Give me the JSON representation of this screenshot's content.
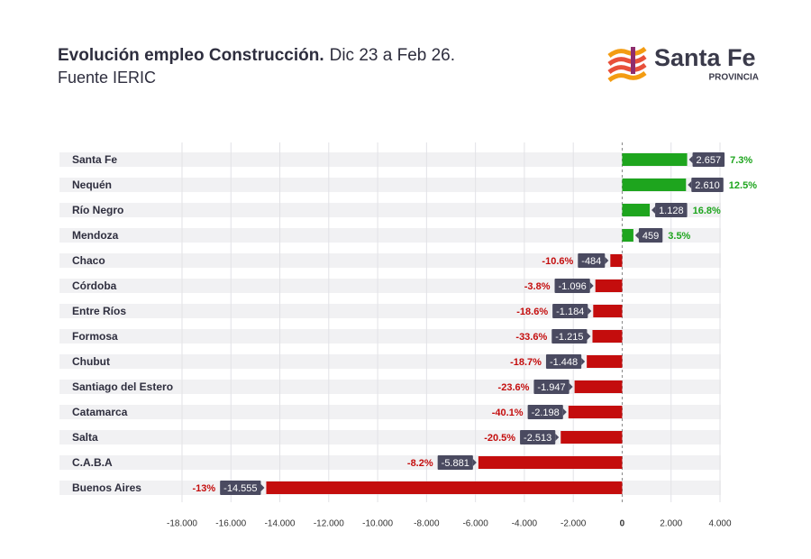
{
  "chart_data": {
    "type": "barh",
    "title": "Evolución empleo Construcción.",
    "subtitle": "Dic 23 a Feb 26.",
    "source": "Fuente IERIC",
    "categories": [
      "Santa Fe",
      "Nequén",
      "Río Negro",
      "Mendoza",
      "Chaco",
      "Córdoba",
      "Entre Ríos",
      "Formosa",
      "Chubut",
      "Santiago del Estero",
      "Catamarca",
      "Salta",
      "C.A.B.A",
      "Buenos Aires"
    ],
    "values": [
      2657,
      2610,
      1128,
      459,
      -484,
      -1096,
      -1184,
      -1215,
      -1448,
      -1947,
      -2198,
      -2513,
      -5881,
      -14555
    ],
    "value_labels": [
      "2.657",
      "2.610",
      "1.128",
      "459",
      "-484",
      "-1.096",
      "-1.184",
      "-1.215",
      "-1.448",
      "-1.947",
      "-2.198",
      "-2.513",
      "-5.881",
      "-14.555"
    ],
    "percent_labels": [
      "7.3%",
      "12.5%",
      "16.8%",
      "3.5%",
      "-10.6%",
      "-3.8%",
      "-18.6%",
      "-33.6%",
      "-18.7%",
      "-23.6%",
      "-40.1%",
      "-20.5%",
      "-8.2%",
      "-13%"
    ],
    "positive_color": "#1ea51e",
    "negative_color": "#c40d0d",
    "xlim": [
      -18000,
      4000
    ],
    "xticks": [
      {
        "value": -18000,
        "label": "-18.000"
      },
      {
        "value": -16000,
        "label": "-16.000"
      },
      {
        "value": -14000,
        "label": "-14.000"
      },
      {
        "value": -12000,
        "label": "-12.000"
      },
      {
        "value": -10000,
        "label": "-10.000"
      },
      {
        "value": -8000,
        "label": "-8.000"
      },
      {
        "value": -6000,
        "label": "-6.000"
      },
      {
        "value": -4000,
        "label": "-4.000"
      },
      {
        "value": -2000,
        "label": "-2.000"
      },
      0,
      {
        "value": 2000,
        "label": "2.000"
      },
      {
        "value": 4000,
        "label": "4.000"
      }
    ],
    "grid": true
  },
  "logo": {
    "name": "Santa Fe",
    "tagline": "PROVINCIA"
  }
}
